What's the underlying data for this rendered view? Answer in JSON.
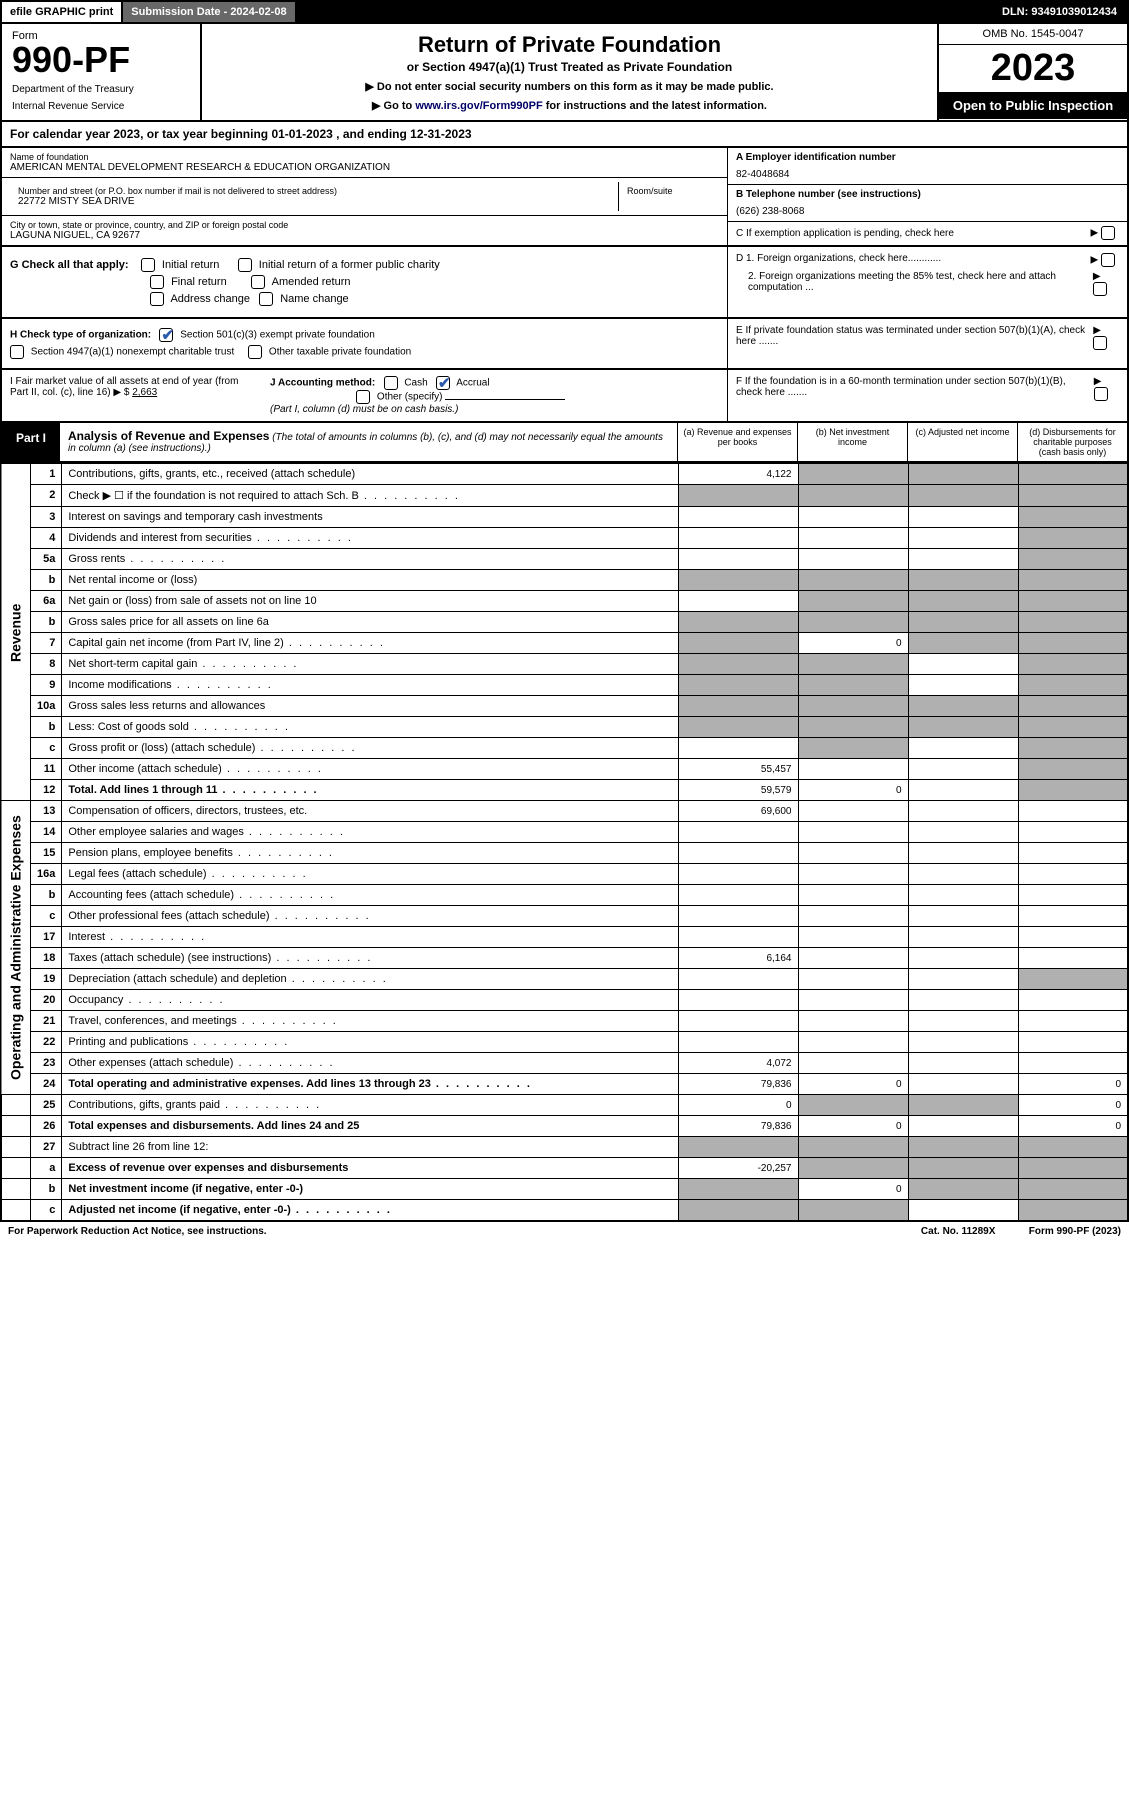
{
  "topbar": {
    "efile": "efile GRAPHIC print",
    "submission": "Submission Date - 2024-02-08",
    "dln": "DLN: 93491039012434"
  },
  "head": {
    "form_label": "Form",
    "form_no": "990-PF",
    "dept": "Department of the Treasury",
    "irs": "Internal Revenue Service",
    "title": "Return of Private Foundation",
    "subtitle": "or Section 4947(a)(1) Trust Treated as Private Foundation",
    "note1": "▶ Do not enter social security numbers on this form as it may be made public.",
    "note2_pre": "▶ Go to ",
    "note2_link": "www.irs.gov/Form990PF",
    "note2_post": " for instructions and the latest information.",
    "omb": "OMB No. 1545-0047",
    "year": "2023",
    "open": "Open to Public Inspection"
  },
  "cal": "For calendar year 2023, or tax year beginning 01-01-2023                          , and ending 12-31-2023",
  "info": {
    "name_lbl": "Name of foundation",
    "name": "AMERICAN MENTAL DEVELOPMENT RESEARCH & EDUCATION ORGANIZATION",
    "addr_lbl": "Number and street (or P.O. box number if mail is not delivered to street address)",
    "addr": "22772 MISTY SEA DRIVE",
    "room_lbl": "Room/suite",
    "city_lbl": "City or town, state or province, country, and ZIP or foreign postal code",
    "city": "LAGUNA NIGUEL, CA  92677",
    "ein_lbl": "A Employer identification number",
    "ein": "82-4048684",
    "tel_lbl": "B Telephone number (see instructions)",
    "tel": "(626) 238-8068",
    "c": "C If exemption application is pending, check here",
    "d1": "D 1. Foreign organizations, check here............",
    "d2": "2. Foreign organizations meeting the 85% test, check here and attach computation ...",
    "e": "E  If private foundation status was terminated under section 507(b)(1)(A), check here .......",
    "f": "F  If the foundation is in a 60-month termination under section 507(b)(1)(B), check here .......",
    "g": "G Check all that apply:",
    "g_opts": [
      "Initial return",
      "Initial return of a former public charity",
      "Final return",
      "Amended return",
      "Address change",
      "Name change"
    ],
    "h": "H Check type of organization:",
    "h1": "Section 501(c)(3) exempt private foundation",
    "h2": "Section 4947(a)(1) nonexempt charitable trust",
    "h3": "Other taxable private foundation",
    "i": "I Fair market value of all assets at end of year (from Part II, col. (c), line 16) ▶ $ ",
    "i_val": "2,663",
    "j": "J Accounting method:",
    "j_cash": "Cash",
    "j_accrual": "Accrual",
    "j_other": "Other (specify)",
    "j_note": "(Part I, column (d) must be on cash basis.)"
  },
  "part1": {
    "tag": "Part I",
    "title": "Analysis of Revenue and Expenses",
    "note": " (The total of amounts in columns (b), (c), and (d) may not necessarily equal the amounts in column (a) (see instructions).)",
    "col_a": "(a)   Revenue and expenses per books",
    "col_b": "(b)   Net investment income",
    "col_c": "(c)   Adjusted net income",
    "col_d": "(d)   Disbursements for charitable purposes (cash basis only)"
  },
  "sidelabels": {
    "rev": "Revenue",
    "exp": "Operating and Administrative Expenses"
  },
  "rows": [
    {
      "n": "1",
      "d": "Contributions, gifts, grants, etc., received (attach schedule)",
      "a": "4,122",
      "grey": [
        false,
        true,
        true,
        true
      ]
    },
    {
      "n": "2",
      "d": "Check ▶ ☐ if the foundation is not required to attach Sch. B",
      "dots": true,
      "grey": [
        true,
        true,
        true,
        true
      ],
      "nocells": true
    },
    {
      "n": "3",
      "d": "Interest on savings and temporary cash investments",
      "grey": [
        false,
        false,
        false,
        true
      ]
    },
    {
      "n": "4",
      "d": "Dividends and interest from securities",
      "dots": true,
      "grey": [
        false,
        false,
        false,
        true
      ]
    },
    {
      "n": "5a",
      "d": "Gross rents",
      "dots": true,
      "grey": [
        false,
        false,
        false,
        true
      ]
    },
    {
      "n": "b",
      "d": "Net rental income or (loss)",
      "blank_after": true,
      "grey": [
        true,
        true,
        true,
        true
      ]
    },
    {
      "n": "6a",
      "d": "Net gain or (loss) from sale of assets not on line 10",
      "grey": [
        false,
        true,
        true,
        true
      ]
    },
    {
      "n": "b",
      "d": "Gross sales price for all assets on line 6a",
      "blank_after": true,
      "grey": [
        true,
        true,
        true,
        true
      ]
    },
    {
      "n": "7",
      "d": "Capital gain net income (from Part IV, line 2)",
      "dots": true,
      "b": "0",
      "grey": [
        true,
        false,
        true,
        true
      ]
    },
    {
      "n": "8",
      "d": "Net short-term capital gain",
      "dots": true,
      "grey": [
        true,
        true,
        false,
        true
      ]
    },
    {
      "n": "9",
      "d": "Income modifications",
      "dots": true,
      "grey": [
        true,
        true,
        false,
        true
      ]
    },
    {
      "n": "10a",
      "d": "Gross sales less returns and allowances",
      "blank_after": true,
      "grey": [
        true,
        true,
        true,
        true
      ]
    },
    {
      "n": "b",
      "d": "Less: Cost of goods sold",
      "dots": true,
      "blank_after": true,
      "grey": [
        true,
        true,
        true,
        true
      ]
    },
    {
      "n": "c",
      "d": "Gross profit or (loss) (attach schedule)",
      "dots": true,
      "grey": [
        false,
        true,
        false,
        true
      ]
    },
    {
      "n": "11",
      "d": "Other income (attach schedule)",
      "dots": true,
      "a": "55,457",
      "grey": [
        false,
        false,
        false,
        true
      ]
    },
    {
      "n": "12",
      "d": "Total. Add lines 1 through 11",
      "dots": true,
      "bold": true,
      "a": "59,579",
      "b": "0",
      "grey": [
        false,
        false,
        false,
        true
      ]
    },
    {
      "n": "13",
      "d": "Compensation of officers, directors, trustees, etc.",
      "a": "69,600",
      "grey": [
        false,
        false,
        false,
        false
      ]
    },
    {
      "n": "14",
      "d": "Other employee salaries and wages",
      "dots": true,
      "grey": [
        false,
        false,
        false,
        false
      ]
    },
    {
      "n": "15",
      "d": "Pension plans, employee benefits",
      "dots": true,
      "grey": [
        false,
        false,
        false,
        false
      ]
    },
    {
      "n": "16a",
      "d": "Legal fees (attach schedule)",
      "dots": true,
      "grey": [
        false,
        false,
        false,
        false
      ]
    },
    {
      "n": "b",
      "d": "Accounting fees (attach schedule)",
      "dots": true,
      "grey": [
        false,
        false,
        false,
        false
      ]
    },
    {
      "n": "c",
      "d": "Other professional fees (attach schedule)",
      "dots": true,
      "grey": [
        false,
        false,
        false,
        false
      ]
    },
    {
      "n": "17",
      "d": "Interest",
      "dots": true,
      "grey": [
        false,
        false,
        false,
        false
      ]
    },
    {
      "n": "18",
      "d": "Taxes (attach schedule) (see instructions)",
      "dots": true,
      "a": "6,164",
      "grey": [
        false,
        false,
        false,
        false
      ]
    },
    {
      "n": "19",
      "d": "Depreciation (attach schedule) and depletion",
      "dots": true,
      "grey": [
        false,
        false,
        false,
        true
      ]
    },
    {
      "n": "20",
      "d": "Occupancy",
      "dots": true,
      "grey": [
        false,
        false,
        false,
        false
      ]
    },
    {
      "n": "21",
      "d": "Travel, conferences, and meetings",
      "dots": true,
      "grey": [
        false,
        false,
        false,
        false
      ]
    },
    {
      "n": "22",
      "d": "Printing and publications",
      "dots": true,
      "grey": [
        false,
        false,
        false,
        false
      ]
    },
    {
      "n": "23",
      "d": "Other expenses (attach schedule)",
      "dots": true,
      "a": "4,072",
      "grey": [
        false,
        false,
        false,
        false
      ]
    },
    {
      "n": "24",
      "d": "Total operating and administrative expenses. Add lines 13 through 23",
      "dots": true,
      "bold": true,
      "a": "79,836",
      "b": "0",
      "d_": "0",
      "grey": [
        false,
        false,
        false,
        false
      ]
    },
    {
      "n": "25",
      "d": "Contributions, gifts, grants paid",
      "dots": true,
      "a": "0",
      "d_": "0",
      "grey": [
        false,
        true,
        true,
        false
      ]
    },
    {
      "n": "26",
      "d": "Total expenses and disbursements. Add lines 24 and 25",
      "bold": true,
      "a": "79,836",
      "b": "0",
      "d_": "0",
      "grey": [
        false,
        false,
        false,
        false
      ]
    },
    {
      "n": "27",
      "d": "Subtract line 26 from line 12:",
      "grey": [
        true,
        true,
        true,
        true
      ]
    },
    {
      "n": "a",
      "d": "Excess of revenue over expenses and disbursements",
      "bold": true,
      "a": "-20,257",
      "grey": [
        false,
        true,
        true,
        true
      ]
    },
    {
      "n": "b",
      "d": "Net investment income (if negative, enter -0-)",
      "bold": true,
      "b": "0",
      "grey": [
        true,
        false,
        true,
        true
      ]
    },
    {
      "n": "c",
      "d": "Adjusted net income (if negative, enter -0-)",
      "dots": true,
      "bold": true,
      "grey": [
        true,
        true,
        false,
        true
      ]
    }
  ],
  "footer": {
    "l": "For Paperwork Reduction Act Notice, see instructions.",
    "m": "Cat. No. 11289X",
    "r": "Form 990-PF (2023)"
  }
}
